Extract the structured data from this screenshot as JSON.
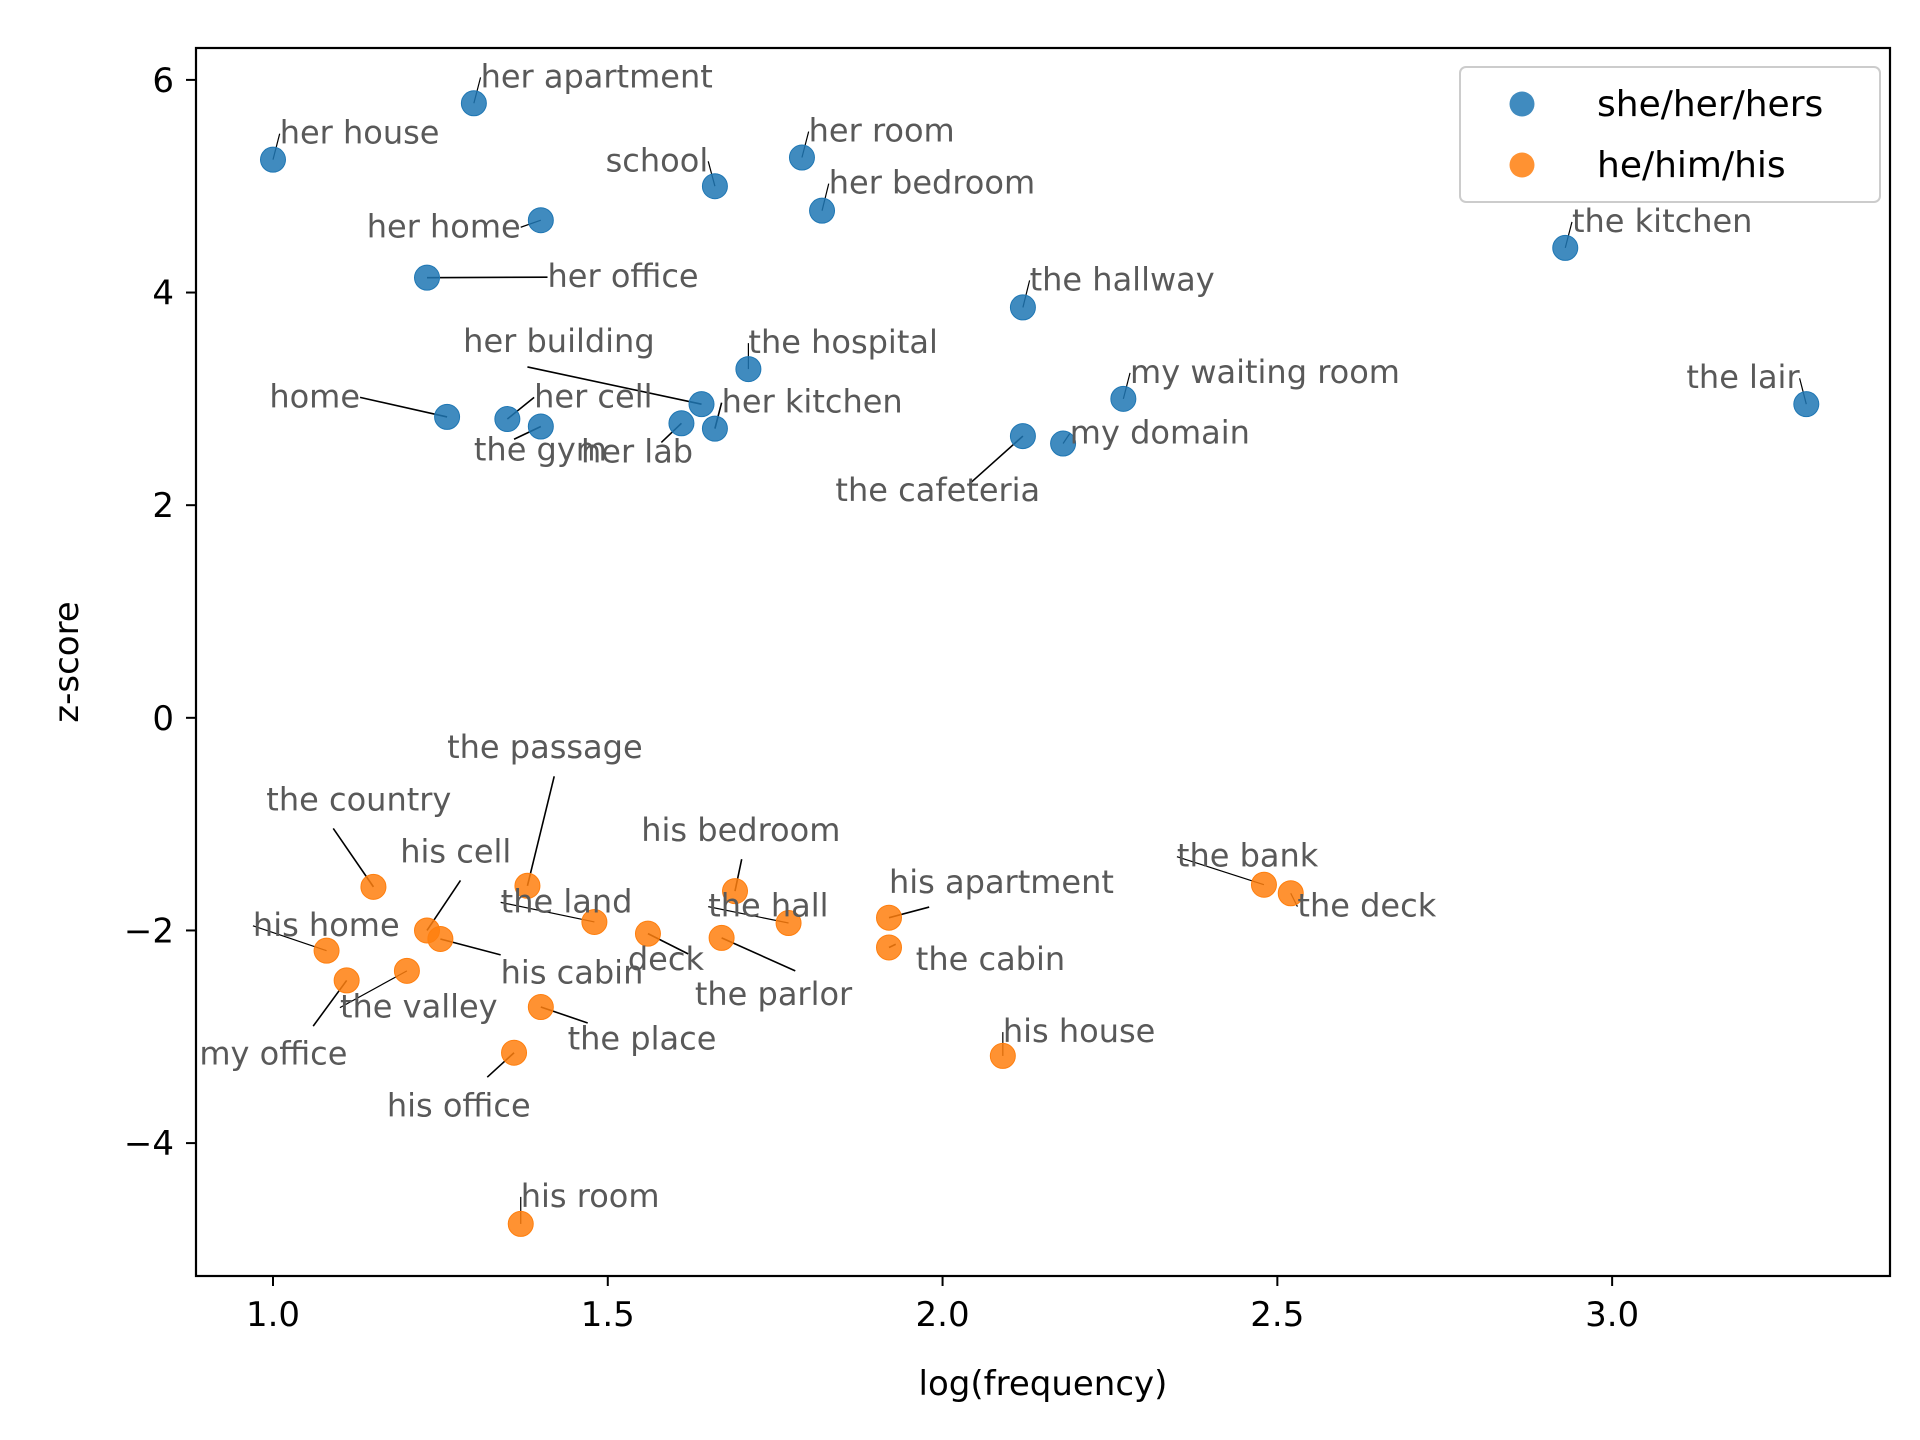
{
  "chart_data": {
    "type": "scatter",
    "xlabel": "log(frequency)",
    "ylabel": "z-score",
    "xlim": [
      0.885,
      3.415
    ],
    "ylim": [
      -5.25,
      6.3
    ],
    "xticks": [
      1.0,
      1.5,
      2.0,
      2.5,
      3.0
    ],
    "xtick_labels": [
      "1.0",
      "1.5",
      "2.0",
      "2.5",
      "3.0"
    ],
    "yticks": [
      -4,
      -2,
      0,
      2,
      4,
      6
    ],
    "ytick_labels": [
      "−4",
      "−2",
      "0",
      "2",
      "4",
      "6"
    ],
    "grid": false,
    "legend_position": "top-right",
    "series": [
      {
        "name": "she/her/hers",
        "color": "#1f77b4",
        "points": [
          {
            "label": "her apartment",
            "x": 1.3,
            "y": 5.78,
            "lx": 1.31,
            "ly": 5.93,
            "anchor": "start"
          },
          {
            "label": "her house",
            "x": 1.0,
            "y": 5.25,
            "lx": 1.01,
            "ly": 5.4,
            "anchor": "start"
          },
          {
            "label": "school",
            "x": 1.66,
            "y": 5.0,
            "lx": 1.65,
            "ly": 5.14,
            "anchor": "end"
          },
          {
            "label": "her room",
            "x": 1.79,
            "y": 5.27,
            "lx": 1.8,
            "ly": 5.42,
            "anchor": "start"
          },
          {
            "label": "her bedroom",
            "x": 1.82,
            "y": 4.77,
            "lx": 1.83,
            "ly": 4.93,
            "anchor": "start"
          },
          {
            "label": "her home",
            "x": 1.4,
            "y": 4.68,
            "lx": 1.37,
            "ly": 4.52,
            "anchor": "end"
          },
          {
            "label": "her office",
            "x": 1.23,
            "y": 4.14,
            "lx": 1.41,
            "ly": 4.05,
            "anchor": "start",
            "line": true
          },
          {
            "label": "the kitchen",
            "x": 2.93,
            "y": 4.42,
            "lx": 2.94,
            "ly": 4.57,
            "anchor": "start"
          },
          {
            "label": "the hallway",
            "x": 2.12,
            "y": 3.86,
            "lx": 2.13,
            "ly": 4.02,
            "anchor": "start"
          },
          {
            "label": "the hospital",
            "x": 1.71,
            "y": 3.28,
            "lx": 1.71,
            "ly": 3.43,
            "anchor": "start"
          },
          {
            "label": "her building",
            "x": 1.64,
            "y": 2.95,
            "lx": 1.57,
            "ly": 3.44,
            "anchor": "end",
            "line": true,
            "lineFrom": [
              1.38,
              3.3
            ]
          },
          {
            "label": "my waiting room",
            "x": 2.27,
            "y": 3.0,
            "lx": 2.28,
            "ly": 3.15,
            "anchor": "start"
          },
          {
            "label": "the lair",
            "x": 3.29,
            "y": 2.95,
            "lx": 3.28,
            "ly": 3.1,
            "anchor": "end"
          },
          {
            "label": "home",
            "x": 1.26,
            "y": 2.83,
            "lx": 1.13,
            "ly": 2.92,
            "anchor": "end",
            "line": true
          },
          {
            "label": "her cell",
            "x": 1.35,
            "y": 2.81,
            "lx": 1.39,
            "ly": 2.92,
            "anchor": "start",
            "line": true
          },
          {
            "label": "the gym",
            "x": 1.4,
            "y": 2.74,
            "lx": 1.3,
            "ly": 2.42,
            "anchor": "start",
            "line": true,
            "lineFrom": [
              1.36,
              2.62
            ]
          },
          {
            "label": "her lab",
            "x": 1.61,
            "y": 2.77,
            "lx": 1.46,
            "ly": 2.4,
            "anchor": "start",
            "line": true,
            "lineFrom": [
              1.58,
              2.59
            ]
          },
          {
            "label": "her kitchen",
            "x": 1.66,
            "y": 2.72,
            "lx": 1.67,
            "ly": 2.87,
            "anchor": "start",
            "line": true
          },
          {
            "label": "the cafeteria",
            "x": 2.12,
            "y": 2.65,
            "lx": 1.84,
            "ly": 2.04,
            "anchor": "start",
            "line": true,
            "lineFrom": [
              2.04,
              2.2
            ]
          },
          {
            "label": "my domain",
            "x": 2.18,
            "y": 2.58,
            "lx": 2.19,
            "ly": 2.58,
            "anchor": "start"
          }
        ]
      },
      {
        "name": "he/him/his",
        "color": "#ff7f0e",
        "points": [
          {
            "label": "the passage",
            "x": 1.38,
            "y": -1.58,
            "lx": 1.26,
            "ly": -0.38,
            "anchor": "start",
            "line": true,
            "lineFrom": [
              1.42,
              -0.55
            ]
          },
          {
            "label": "the country",
            "x": 1.15,
            "y": -1.59,
            "lx": 0.99,
            "ly": -0.87,
            "anchor": "start",
            "line": true,
            "lineFrom": [
              1.09,
              -1.04
            ]
          },
          {
            "label": "his cell",
            "x": 1.23,
            "y": -2.0,
            "lx": 1.19,
            "ly": -1.36,
            "anchor": "start",
            "line": true,
            "lineFrom": [
              1.28,
              -1.53
            ]
          },
          {
            "label": "his bedroom",
            "x": 1.69,
            "y": -1.63,
            "lx": 1.55,
            "ly": -1.16,
            "anchor": "start",
            "line": true,
            "lineFrom": [
              1.7,
              -1.33
            ]
          },
          {
            "label": "the land",
            "x": 1.48,
            "y": -1.92,
            "lx": 1.34,
            "ly": -1.83,
            "anchor": "start"
          },
          {
            "label": "the hall",
            "x": 1.77,
            "y": -1.93,
            "lx": 1.65,
            "ly": -1.87,
            "anchor": "start"
          },
          {
            "label": "his apartment",
            "x": 1.92,
            "y": -1.88,
            "lx": 1.92,
            "ly": -1.65,
            "anchor": "start",
            "line": true,
            "lineFrom": [
              1.98,
              -1.78
            ]
          },
          {
            "label": "the bank",
            "x": 2.48,
            "y": -1.57,
            "lx": 2.35,
            "ly": -1.4,
            "anchor": "start"
          },
          {
            "label": "the deck",
            "x": 2.52,
            "y": -1.65,
            "lx": 2.53,
            "ly": -1.87,
            "anchor": "start"
          },
          {
            "label": "his home",
            "x": 1.08,
            "y": -2.19,
            "lx": 0.97,
            "ly": -2.05,
            "anchor": "start"
          },
          {
            "label": "his cabin",
            "x": 1.25,
            "y": -2.08,
            "lx": 1.34,
            "ly": -2.5,
            "anchor": "start",
            "line": true,
            "lineFrom": [
              1.34,
              -2.23
            ]
          },
          {
            "label": "deck",
            "x": 1.56,
            "y": -2.03,
            "lx": 1.53,
            "ly": -2.37,
            "anchor": "start",
            "line": true,
            "lineFrom": [
              1.62,
              -2.22
            ]
          },
          {
            "label": "the parlor",
            "x": 1.67,
            "y": -2.07,
            "lx": 1.63,
            "ly": -2.7,
            "anchor": "start",
            "line": true,
            "lineFrom": [
              1.78,
              -2.38
            ]
          },
          {
            "label": "the cabin",
            "x": 1.92,
            "y": -2.16,
            "lx": 1.96,
            "ly": -2.37,
            "anchor": "start",
            "line": true,
            "lineFrom": [
              1.93,
              -2.13
            ]
          },
          {
            "label": "the valley",
            "x": 1.2,
            "y": -2.38,
            "lx": 1.1,
            "ly": -2.82,
            "anchor": "start"
          },
          {
            "label": "my office",
            "x": 1.11,
            "y": -2.47,
            "lx": 0.89,
            "ly": -3.26,
            "anchor": "start",
            "line": true,
            "lineFrom": [
              1.06,
              -2.9
            ]
          },
          {
            "label": "the place",
            "x": 1.4,
            "y": -2.72,
            "lx": 1.44,
            "ly": -3.12,
            "anchor": "start",
            "line": true,
            "lineFrom": [
              1.47,
              -2.87
            ]
          },
          {
            "label": "his office",
            "x": 1.36,
            "y": -3.15,
            "lx": 1.17,
            "ly": -3.75,
            "anchor": "start",
            "line": true,
            "lineFrom": [
              1.32,
              -3.38
            ]
          },
          {
            "label": "his house",
            "x": 2.09,
            "y": -3.18,
            "lx": 2.09,
            "ly": -3.05,
            "anchor": "start"
          },
          {
            "label": "his room",
            "x": 1.37,
            "y": -4.76,
            "lx": 1.37,
            "ly": -4.6,
            "anchor": "start"
          }
        ]
      }
    ]
  }
}
